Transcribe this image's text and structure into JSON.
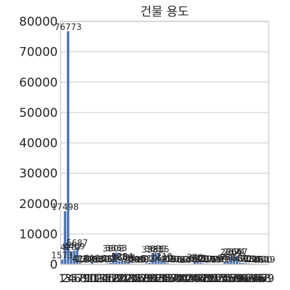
{
  "chart_data": {
    "type": "bar",
    "title": "건물 용도",
    "xlabel": "",
    "ylabel": "",
    "ylim": [
      0,
      80000
    ],
    "yticks": [
      0,
      10000,
      20000,
      30000,
      40000,
      50000,
      60000,
      70000,
      80000
    ],
    "grid": true,
    "bar_color": "#4c72b0",
    "categories": [
      "1",
      "2",
      "3",
      "4",
      "5",
      "6",
      "7",
      "8",
      "9",
      "10",
      "11",
      "12",
      "13",
      "14",
      "15",
      "16",
      "17",
      "18",
      "19",
      "20",
      "21",
      "22",
      "23",
      "24",
      "25",
      "26",
      "27",
      "28",
      "29",
      "30",
      "31",
      "32",
      "33",
      "34",
      "35",
      "36",
      "37",
      "38",
      "39",
      "40",
      "41",
      "42",
      "43",
      "44",
      "45",
      "46",
      "47",
      "48",
      "49",
      "50",
      "51",
      "52",
      "53",
      "54",
      "55",
      "56",
      "57",
      "58",
      "59",
      "60",
      "61",
      "62",
      "63",
      "64",
      "65",
      "66",
      "67",
      "68",
      "69"
    ],
    "values": [
      1573,
      17498,
      76773,
      4267,
      4469,
      5687,
      423,
      231,
      118,
      245,
      612,
      95,
      88,
      140,
      176,
      302,
      512,
      3808,
      3863,
      985,
      1204,
      640,
      711,
      280,
      150,
      119,
      95,
      88,
      402,
      510,
      3381,
      3655,
      3555,
      1210,
      640,
      405,
      220,
      180,
      95,
      77,
      66,
      54,
      150,
      201,
      770,
      640,
      522,
      310,
      205,
      177,
      144,
      95,
      130,
      211,
      640,
      880,
      2604,
      2674,
      2667,
      560,
      470,
      388,
      301,
      254,
      212,
      180,
      160,
      140,
      119
    ]
  }
}
